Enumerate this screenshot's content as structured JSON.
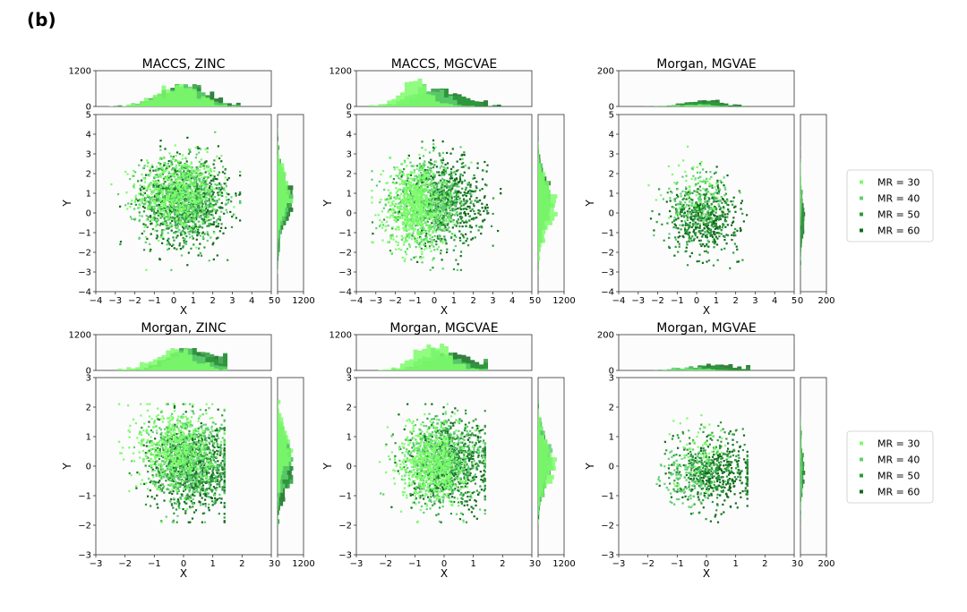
{
  "panel_label": "(b)",
  "colors": {
    "MR = 30": "#7CFC6A",
    "MR = 40": "#5FD070",
    "MR = 50": "#2E9A3C",
    "MR = 60": "#0F6B1A"
  },
  "legends": [
    {
      "entries": [
        "MR = 30",
        "MR = 40",
        "MR = 50",
        "MR = 60"
      ]
    },
    {
      "entries": [
        "MR = 30",
        "MR = 40",
        "MR = 50",
        "MR = 60"
      ]
    }
  ],
  "chart_data": [
    {
      "type": "scatter",
      "title": "MACCS, ZINC",
      "xlabel": "X",
      "ylabel": "Y",
      "xlim": [
        -4,
        5
      ],
      "ylim": [
        -4,
        5
      ],
      "xticks": [
        -4,
        -3,
        -2,
        -1,
        0,
        1,
        2,
        3,
        4,
        5
      ],
      "yticks": [
        -4,
        -3,
        -2,
        -1,
        0,
        1,
        2,
        3,
        4,
        5
      ],
      "top_hist_max": 1200,
      "top_hist_ticks": [
        0,
        1200
      ],
      "side_hist_max": 1200,
      "side_hist_ticks": [
        0,
        1200
      ],
      "series": [
        {
          "name": "MR = 30",
          "center": [
            0.2,
            1.0
          ],
          "spread": [
            1.3,
            1.2
          ],
          "points": 500
        },
        {
          "name": "MR = 40",
          "center": [
            0.4,
            0.7
          ],
          "spread": [
            1.3,
            1.3
          ],
          "points": 500
        },
        {
          "name": "MR = 50",
          "center": [
            0.6,
            0.6
          ],
          "spread": [
            1.3,
            1.3
          ],
          "points": 500
        },
        {
          "name": "MR = 60",
          "center": [
            0.6,
            0.6
          ],
          "spread": [
            1.4,
            1.4
          ],
          "points": 500
        }
      ]
    },
    {
      "type": "scatter",
      "title": "MACCS, MGCVAE",
      "xlabel": "X",
      "ylabel": "Y",
      "xlim": [
        -4,
        5
      ],
      "ylim": [
        -4,
        5
      ],
      "xticks": [
        -4,
        -3,
        -2,
        -1,
        0,
        1,
        2,
        3,
        4,
        5
      ],
      "yticks": [
        -4,
        -3,
        -2,
        -1,
        0,
        1,
        2,
        3,
        4,
        5
      ],
      "top_hist_max": 1200,
      "top_hist_ticks": [
        0,
        1200
      ],
      "side_hist_max": 1200,
      "side_hist_ticks": [
        0,
        1200
      ],
      "series": [
        {
          "name": "MR = 30",
          "center": [
            -1.0,
            0.3
          ],
          "spread": [
            1.0,
            1.3
          ],
          "points": 700
        },
        {
          "name": "MR = 40",
          "center": [
            -0.4,
            0.4
          ],
          "spread": [
            1.2,
            1.3
          ],
          "points": 500
        },
        {
          "name": "MR = 50",
          "center": [
            0.3,
            0.5
          ],
          "spread": [
            1.3,
            1.3
          ],
          "points": 400
        },
        {
          "name": "MR = 60",
          "center": [
            0.6,
            0.6
          ],
          "spread": [
            1.3,
            1.4
          ],
          "points": 400
        }
      ]
    },
    {
      "type": "scatter",
      "title": "Morgan, MGVAE",
      "xlabel": "X",
      "ylabel": "Y",
      "xlim": [
        -4,
        5
      ],
      "ylim": [
        -4,
        5
      ],
      "xticks": [
        -4,
        -3,
        -2,
        -1,
        0,
        1,
        2,
        3,
        4,
        5
      ],
      "yticks": [
        -4,
        -3,
        -2,
        -1,
        0,
        1,
        2,
        3,
        4,
        5
      ],
      "top_hist_max": 200,
      "top_hist_ticks": [
        0,
        200
      ],
      "side_hist_max": 200,
      "side_hist_ticks": [
        0,
        200
      ],
      "series": [
        {
          "name": "MR = 30",
          "center": [
            0.0,
            1.2
          ],
          "spread": [
            1.0,
            1.0
          ],
          "points": 60
        },
        {
          "name": "MR = 40",
          "center": [
            0.1,
            0.6
          ],
          "spread": [
            1.1,
            1.1
          ],
          "points": 120
        },
        {
          "name": "MR = 50",
          "center": [
            0.3,
            -0.2
          ],
          "spread": [
            1.1,
            1.1
          ],
          "points": 250
        },
        {
          "name": "MR = 60",
          "center": [
            0.4,
            -0.3
          ],
          "spread": [
            1.1,
            1.0
          ],
          "points": 300
        }
      ]
    },
    {
      "type": "scatter",
      "title": "Morgan, ZINC",
      "xlabel": "X",
      "ylabel": "Y",
      "xlim": [
        -3,
        3
      ],
      "ylim": [
        -3,
        3
      ],
      "xticks": [
        -3,
        -2,
        -1,
        0,
        1,
        2,
        3
      ],
      "yticks": [
        -3,
        -2,
        -1,
        0,
        1,
        2,
        3
      ],
      "top_hist_max": 1200,
      "top_hist_ticks": [
        0,
        1200
      ],
      "side_hist_max": 1200,
      "side_hist_ticks": [
        0,
        1200
      ],
      "series": [
        {
          "name": "MR = 30",
          "center": [
            -0.3,
            0.6
          ],
          "spread": [
            0.8,
            0.9
          ],
          "points": 500
        },
        {
          "name": "MR = 40",
          "center": [
            0.1,
            0.3
          ],
          "spread": [
            0.8,
            0.9
          ],
          "points": 500
        },
        {
          "name": "MR = 50",
          "center": [
            0.3,
            0.0
          ],
          "spread": [
            0.9,
            0.9
          ],
          "points": 500
        },
        {
          "name": "MR = 60",
          "center": [
            0.3,
            -0.1
          ],
          "spread": [
            0.9,
            0.9
          ],
          "points": 500
        }
      ]
    },
    {
      "type": "scatter",
      "title": "Morgan, MGCVAE",
      "xlabel": "X",
      "ylabel": "Y",
      "xlim": [
        -3,
        3
      ],
      "ylim": [
        -3,
        3
      ],
      "xticks": [
        -3,
        -2,
        -1,
        0,
        1,
        2,
        3
      ],
      "yticks": [
        -3,
        -2,
        -1,
        0,
        1,
        2,
        3
      ],
      "top_hist_max": 1200,
      "top_hist_ticks": [
        0,
        1200
      ],
      "side_hist_max": 1200,
      "side_hist_ticks": [
        0,
        1200
      ],
      "series": [
        {
          "name": "MR = 30",
          "center": [
            -0.4,
            0.1
          ],
          "spread": [
            0.7,
            0.8
          ],
          "points": 600
        },
        {
          "name": "MR = 40",
          "center": [
            -0.1,
            0.2
          ],
          "spread": [
            0.8,
            0.9
          ],
          "points": 500
        },
        {
          "name": "MR = 50",
          "center": [
            0.2,
            0.1
          ],
          "spread": [
            0.9,
            0.9
          ],
          "points": 400
        },
        {
          "name": "MR = 60",
          "center": [
            0.3,
            0.0
          ],
          "spread": [
            0.9,
            0.9
          ],
          "points": 400
        }
      ]
    },
    {
      "type": "scatter",
      "title": "Morgan, MGVAE",
      "xlabel": "X",
      "ylabel": "Y",
      "xlim": [
        -3,
        3
      ],
      "ylim": [
        -3,
        3
      ],
      "xticks": [
        -3,
        -2,
        -1,
        0,
        1,
        2,
        3
      ],
      "yticks": [
        -3,
        -2,
        -1,
        0,
        1,
        2,
        3
      ],
      "top_hist_max": 200,
      "top_hist_ticks": [
        0,
        200
      ],
      "side_hist_max": 200,
      "side_hist_ticks": [
        0,
        200
      ],
      "series": [
        {
          "name": "MR = 30",
          "center": [
            -0.3,
            0.6
          ],
          "spread": [
            0.7,
            0.8
          ],
          "points": 60
        },
        {
          "name": "MR = 40",
          "center": [
            -0.6,
            -0.3
          ],
          "spread": [
            0.6,
            0.6
          ],
          "points": 150
        },
        {
          "name": "MR = 50",
          "center": [
            0.2,
            0.0
          ],
          "spread": [
            0.9,
            0.8
          ],
          "points": 250
        },
        {
          "name": "MR = 60",
          "center": [
            0.4,
            -0.3
          ],
          "spread": [
            0.8,
            0.7
          ],
          "points": 300
        }
      ]
    }
  ]
}
